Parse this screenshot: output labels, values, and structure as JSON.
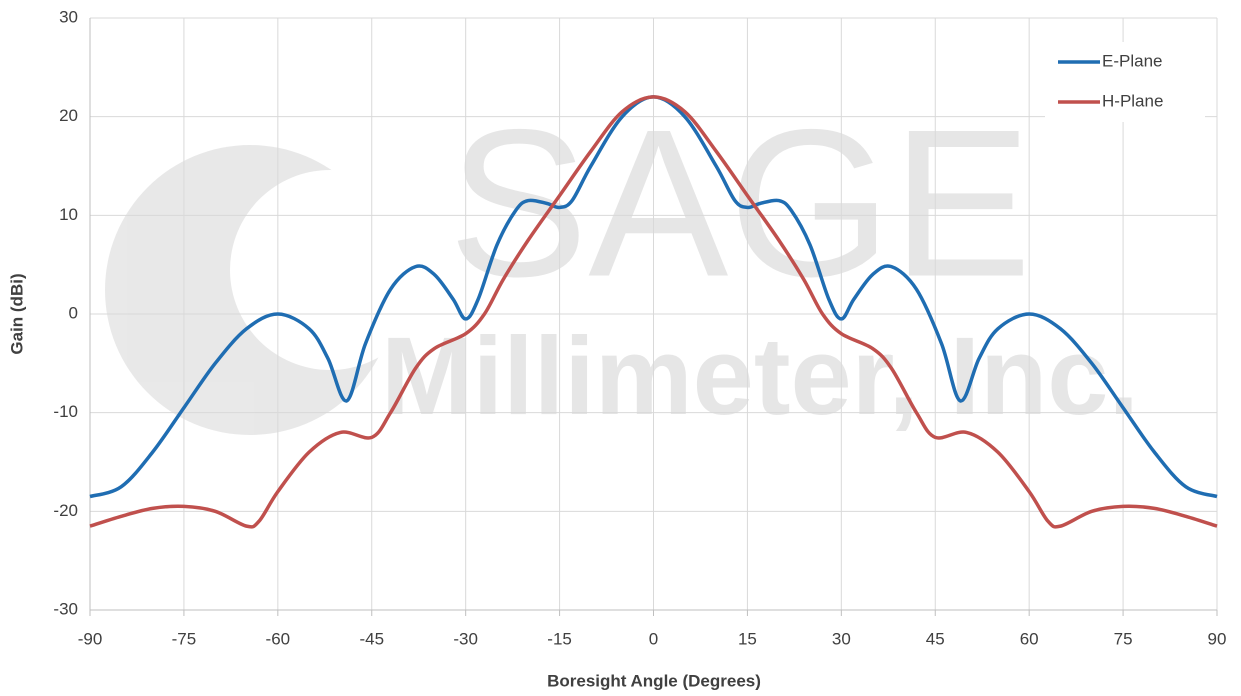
{
  "chart_data": {
    "type": "line",
    "watermark": {
      "title": "SAGE",
      "subtitle": "Millimeter, Inc."
    },
    "xlabel": "Boresight Angle (Degrees)",
    "ylabel": "Gain (dBi)",
    "xlim": [
      -90,
      90
    ],
    "xticks": [
      -90,
      -75,
      -60,
      -45,
      -30,
      -15,
      0,
      15,
      30,
      45,
      60,
      75,
      90
    ],
    "ylim": [
      -30,
      30
    ],
    "yticks": [
      -30,
      -20,
      -10,
      0,
      10,
      20,
      30
    ],
    "grid": true,
    "legend": "upper right",
    "series": [
      {
        "name": "E-Plane",
        "color": "#1f6db2",
        "x": [
          -90,
          -85,
          -80,
          -75,
          -70,
          -65,
          -60,
          -55,
          -52,
          -49,
          -46,
          -42,
          -38,
          -35,
          -32,
          -30,
          -28,
          -25,
          -22,
          -20,
          -17,
          -15,
          -13,
          -10,
          -5,
          0,
          5,
          10,
          13,
          15,
          17,
          20,
          22,
          25,
          28,
          30,
          32,
          35,
          38,
          42,
          46,
          49,
          52,
          55,
          60,
          65,
          70,
          75,
          80,
          85,
          90
        ],
        "values": [
          -18.5,
          -17.5,
          -14,
          -9.5,
          -5,
          -1.5,
          0,
          -1.5,
          -4.5,
          -8.8,
          -3,
          2.5,
          4.8,
          4,
          1.5,
          -0.5,
          1.5,
          7,
          10.5,
          11.5,
          11.2,
          10.8,
          11.5,
          15,
          20,
          22,
          20,
          15,
          11.5,
          10.8,
          11.2,
          11.5,
          10.5,
          7,
          1.5,
          -0.5,
          1.5,
          4,
          4.8,
          2.5,
          -3,
          -8.8,
          -4.5,
          -1.5,
          0,
          -1.5,
          -5,
          -9.5,
          -14,
          -17.5,
          -18.5
        ]
      },
      {
        "name": "H-Plane",
        "color": "#c0504d",
        "x": [
          -90,
          -85,
          -80,
          -75,
          -70,
          -65,
          -63,
          -60,
          -55,
          -50,
          -45,
          -42,
          -38,
          -35,
          -30,
          -27,
          -24,
          -20,
          -15,
          -10,
          -5,
          0,
          5,
          10,
          15,
          20,
          24,
          27,
          30,
          35,
          38,
          42,
          45,
          50,
          55,
          60,
          63,
          65,
          70,
          75,
          80,
          85,
          90
        ],
        "values": [
          -21.5,
          -20.5,
          -19.7,
          -19.5,
          -20,
          -21.5,
          -21,
          -18,
          -14,
          -12,
          -12.5,
          -10,
          -5.5,
          -3.5,
          -2,
          0,
          3.5,
          7.5,
          12,
          16.5,
          20.5,
          22,
          20.5,
          16.5,
          12,
          7.5,
          3.5,
          0,
          -2,
          -3.5,
          -5.5,
          -10,
          -12.5,
          -12,
          -14,
          -18,
          -21,
          -21.5,
          -20,
          -19.5,
          -19.7,
          -20.5,
          -21.5
        ]
      }
    ]
  }
}
